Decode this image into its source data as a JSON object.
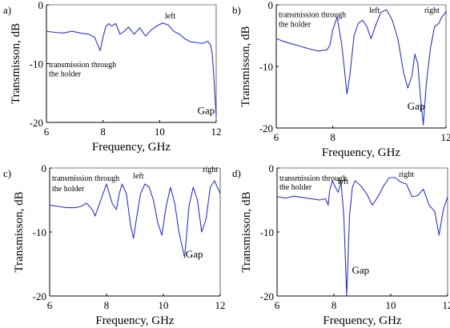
{
  "chart_data": [
    {
      "panel_label": "a)",
      "type": "line",
      "xlabel": "Frequency, GHz",
      "ylabel": "Transmisson, dB",
      "xlim": [
        6,
        12
      ],
      "ylim": [
        -20,
        0
      ],
      "x_ticks": [
        "6",
        "8",
        "10",
        "12"
      ],
      "y_ticks": [
        "0",
        "-10",
        "-20"
      ],
      "annotations": [
        {
          "text": "transmission through",
          "x": 6.0,
          "y": -10.6
        },
        {
          "text": "the holder",
          "x": 6.0,
          "y": -12.2
        },
        {
          "text": "left",
          "x": 10.1,
          "y": -2.3
        },
        {
          "text": "Gap",
          "x": 11.25,
          "y": -18.6
        }
      ],
      "series": [
        {
          "x": [
            6.0,
            6.3,
            6.6,
            6.9,
            7.2,
            7.5,
            7.7,
            7.9,
            8.0,
            8.1,
            8.2,
            8.3,
            8.45,
            8.6,
            8.75,
            8.9,
            9.1,
            9.3,
            9.5,
            9.7,
            9.9,
            10.1,
            10.3,
            10.5,
            10.7,
            10.9,
            11.1,
            11.3,
            11.5,
            11.7,
            11.8,
            11.85,
            11.9,
            11.95,
            12.0
          ],
          "y": [
            -4.5,
            -4.7,
            -4.8,
            -4.5,
            -4.8,
            -5.0,
            -5.5,
            -7.8,
            -5.5,
            -3.7,
            -3.2,
            -3.6,
            -3.2,
            -5.0,
            -4.5,
            -3.8,
            -5.0,
            -3.9,
            -5.3,
            -4.3,
            -3.6,
            -3.1,
            -3.4,
            -4.5,
            -5.0,
            -5.8,
            -6.3,
            -6.4,
            -6.6,
            -6.2,
            -6.8,
            -8.0,
            -11.0,
            -15.0,
            -19.0
          ]
        }
      ]
    },
    {
      "panel_label": "b)",
      "type": "line",
      "xlabel": "Frequency, GHz",
      "ylabel": "Transmisson, dB",
      "xlim": [
        6,
        12
      ],
      "ylim": [
        -20,
        0
      ],
      "x_ticks": [
        "6",
        "8",
        "12"
      ],
      "y_ticks": [
        "0",
        "-10",
        "-20"
      ],
      "annotations": [
        {
          "text": "transmission through",
          "x": 6.0,
          "y": -2.0
        },
        {
          "text": "the holder",
          "x": 6.0,
          "y": -3.6
        },
        {
          "text": "left",
          "x": 9.2,
          "y": -1.3
        },
        {
          "text": "right",
          "x": 11.15,
          "y": -1.3
        },
        {
          "text": "Gap",
          "x": 10.55,
          "y": -17.0
        }
      ],
      "series": [
        {
          "x": [
            6.0,
            6.3,
            6.6,
            6.9,
            7.2,
            7.5,
            7.8,
            7.9,
            8.0,
            8.15,
            8.3,
            8.4,
            8.5,
            8.6,
            8.75,
            8.9,
            9.05,
            9.2,
            9.35,
            9.5,
            9.7,
            9.9,
            10.1,
            10.3,
            10.5,
            10.65,
            10.8,
            10.9,
            11.0,
            11.1,
            11.2,
            11.3,
            11.45,
            11.6,
            11.75,
            11.85,
            11.95,
            12.0
          ],
          "y": [
            -5.5,
            -6.0,
            -6.4,
            -6.8,
            -7.2,
            -7.5,
            -7.3,
            -6.5,
            -4.0,
            -2.0,
            -6.0,
            -10.0,
            -14.5,
            -11.5,
            -5.0,
            -3.0,
            -2.5,
            -3.5,
            -5.5,
            -3.5,
            -1.2,
            -0.8,
            -2.5,
            -5.5,
            -11.0,
            -13.5,
            -11.5,
            -8.0,
            -9.5,
            -15.0,
            -19.5,
            -13.0,
            -7.0,
            -3.5,
            -3.0,
            -2.0,
            -1.5,
            -1.0
          ]
        }
      ]
    },
    {
      "panel_label": "c)",
      "type": "line",
      "xlabel": "Frequency, GHz",
      "ylabel": "Transmisson, dB",
      "xlim": [
        6,
        12
      ],
      "ylim": [
        -20,
        0
      ],
      "x_ticks": [
        "6",
        "8",
        "10",
        "12"
      ],
      "y_ticks": [
        "0",
        "-10",
        "-20"
      ],
      "annotations": [
        {
          "text": "transmission through",
          "x": 6.0,
          "y": -2.0
        },
        {
          "text": "the holder",
          "x": 6.0,
          "y": -3.6
        },
        {
          "text": "left",
          "x": 8.85,
          "y": -1.6
        },
        {
          "text": "right",
          "x": 11.3,
          "y": -0.6
        },
        {
          "text": "Gap",
          "x": 10.7,
          "y": -14.0
        }
      ],
      "series": [
        {
          "x": [
            6.0,
            6.3,
            6.6,
            6.9,
            7.1,
            7.3,
            7.5,
            7.6,
            7.8,
            8.0,
            8.2,
            8.35,
            8.45,
            8.55,
            8.7,
            8.85,
            8.95,
            9.05,
            9.2,
            9.35,
            9.5,
            9.65,
            9.8,
            9.95,
            10.1,
            10.25,
            10.4,
            10.55,
            10.75,
            10.9,
            11.05,
            11.2,
            11.35,
            11.5,
            11.65,
            11.8,
            12.0
          ],
          "y": [
            -5.8,
            -6.0,
            -6.2,
            -6.2,
            -6.0,
            -5.5,
            -6.5,
            -7.5,
            -5.0,
            -2.5,
            -5.5,
            -6.5,
            -4.0,
            -2.5,
            -4.0,
            -9.0,
            -11.0,
            -8.0,
            -4.0,
            -2.5,
            -3.0,
            -5.0,
            -8.5,
            -10.5,
            -6.0,
            -3.0,
            -5.5,
            -10.0,
            -14.0,
            -6.0,
            -3.0,
            -5.0,
            -10.0,
            -8.0,
            -3.0,
            -2.0,
            -4.0
          ]
        }
      ]
    },
    {
      "panel_label": "d)",
      "type": "line",
      "xlabel": "Frequency, GHz",
      "ylabel": "Transmisson, dB",
      "xlim": [
        6,
        12
      ],
      "ylim": [
        -20,
        0
      ],
      "x_ticks": [
        "6",
        "8",
        "10",
        "12"
      ],
      "y_ticks": [
        "0",
        "-10",
        "-20"
      ],
      "annotations": [
        {
          "text": "transmission through",
          "x": 6.0,
          "y": -2.0
        },
        {
          "text": "the holder",
          "x": 6.0,
          "y": -3.4
        },
        {
          "text": "left",
          "x": 8.05,
          "y": -2.5
        },
        {
          "text": "right",
          "x": 10.2,
          "y": -1.4
        },
        {
          "text": "Gap",
          "x": 8.55,
          "y": -16.5
        }
      ],
      "series": [
        {
          "x": [
            6.0,
            6.3,
            6.6,
            6.9,
            7.2,
            7.5,
            7.7,
            7.8,
            7.85,
            7.95,
            8.05,
            8.15,
            8.25,
            8.35,
            8.45,
            8.55,
            8.65,
            8.75,
            8.95,
            9.15,
            9.35,
            9.55,
            9.75,
            9.95,
            10.15,
            10.35,
            10.55,
            10.75,
            10.95,
            11.15,
            11.35,
            11.55,
            11.7,
            11.85,
            12.0
          ],
          "y": [
            -4.5,
            -4.7,
            -4.4,
            -4.6,
            -4.8,
            -5.0,
            -4.8,
            -5.8,
            -3.5,
            -2.0,
            -3.0,
            -3.8,
            -2.3,
            -7.5,
            -20.0,
            -7.5,
            -3.0,
            -2.0,
            -2.8,
            -4.0,
            -5.8,
            -4.5,
            -2.8,
            -1.5,
            -1.5,
            -2.2,
            -2.5,
            -4.5,
            -4.3,
            -3.3,
            -5.8,
            -6.8,
            -10.5,
            -6.5,
            -4.5
          ]
        }
      ]
    }
  ]
}
